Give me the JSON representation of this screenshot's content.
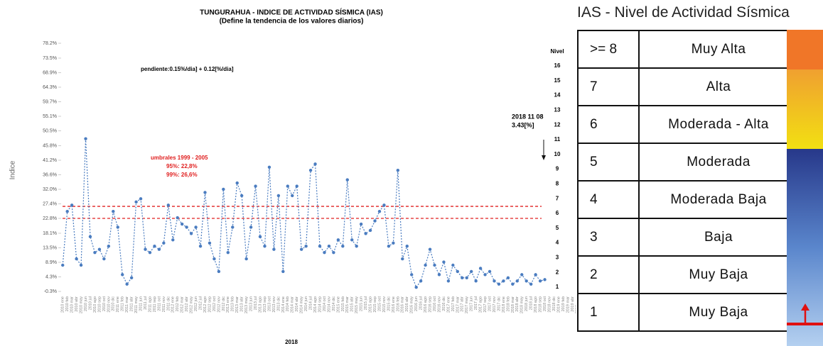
{
  "chart_data": {
    "type": "line",
    "title": "TUNGURAHUA - INDICE DE ACTIVIDAD SÍSMICA (IAS)",
    "subtitle": "(Define la tendencia de los valores diarios)",
    "y_label": "Indice",
    "x_label": "2018",
    "y2_label": "Nivel",
    "color": "#4a7cc0",
    "categories": [
      "2010 ene",
      "2010 feb",
      "2010 mar",
      "2010 abr",
      "2010 may",
      "2010 jun",
      "2010 jul",
      "2010 ago",
      "2010 sep",
      "2010 oct",
      "2010 nov",
      "2010 dic",
      "2011 ene",
      "2011 feb",
      "2011 mar",
      "2011 abr",
      "2011 may",
      "2011 jun",
      "2011 jul",
      "2011 ago",
      "2011 sep",
      "2011 oct",
      "2011 nov",
      "2011 dic",
      "2012 ene",
      "2012 feb",
      "2012 mar",
      "2012 abr",
      "2012 may",
      "2012 jun",
      "2012 jul",
      "2012 ago",
      "2012 sep",
      "2012 oct",
      "2012 nov",
      "2012 dic",
      "2013 ene",
      "2013 feb",
      "2013 mar",
      "2013 abr",
      "2013 may",
      "2013 jun",
      "2013 jul",
      "2013 ago",
      "2013 sep",
      "2013 oct",
      "2013 nov",
      "2013 dic",
      "2014 ene",
      "2014 feb",
      "2014 mar",
      "2014 abr",
      "2014 may",
      "2014 jun",
      "2014 jul",
      "2014 ago",
      "2014 sep",
      "2014 oct",
      "2014 nov",
      "2014 dic",
      "2015 ene",
      "2015 feb",
      "2015 mar",
      "2015 abr",
      "2015 may",
      "2015 jun",
      "2015 jul",
      "2015 ago",
      "2015 sep",
      "2015 oct",
      "2015 nov",
      "2015 dic",
      "2016 ene",
      "2016 feb",
      "2016 mar",
      "2016 abr",
      "2016 may",
      "2016 jun",
      "2016 jul",
      "2016 ago",
      "2016 sep",
      "2016 oct",
      "2016 nov",
      "2016 dic",
      "2017 ene",
      "2017 feb",
      "2017 mar",
      "2017 abr",
      "2017 may",
      "2017 jun",
      "2017 jul",
      "2017 ago",
      "2017 sep",
      "2017 oct",
      "2017 nov",
      "2017 dic",
      "2018 ene",
      "2018 feb",
      "2018 mar",
      "2018 abr",
      "2018 may",
      "2018 jun",
      "2018 jul",
      "2018 ago",
      "2018 sep",
      "2018 oct",
      "2018 nov",
      "2018 dic",
      "2019 ene",
      "2019 feb",
      "2019 mar",
      "2019 abr",
      "2019 may"
    ],
    "values": [
      8,
      25,
      27,
      10,
      8,
      48,
      17,
      12,
      13,
      10,
      14,
      25,
      20,
      5,
      2,
      4,
      28,
      29,
      13,
      12,
      14,
      13,
      15,
      27,
      16,
      23,
      21,
      20,
      18,
      20,
      14,
      31,
      15,
      10,
      6,
      32,
      12,
      20,
      34,
      30,
      10,
      20,
      33,
      17,
      14,
      39,
      13,
      30,
      6,
      33,
      30,
      33,
      13,
      14,
      38,
      40,
      14,
      12,
      14,
      12,
      16,
      14,
      35,
      16,
      14,
      21,
      18,
      19,
      22,
      25,
      27,
      14,
      15,
      38,
      10,
      14,
      5,
      1,
      3,
      8,
      13,
      8,
      5,
      9,
      3,
      8,
      6,
      4,
      4,
      6,
      3,
      7,
      5,
      6,
      3,
      2,
      3,
      4,
      2,
      3,
      5,
      3,
      2,
      5,
      3,
      3.43,
      null,
      null,
      null,
      null,
      null,
      null,
      null
    ],
    "ylim": [
      -0.3,
      78.2
    ],
    "yticks": [
      {
        "value": -0.3,
        "label": "-0.3%"
      },
      {
        "value": 4.3,
        "label": "4.3%"
      },
      {
        "value": 8.9,
        "label": "8.9%"
      },
      {
        "value": 13.5,
        "label": "13.5%"
      },
      {
        "value": 18.1,
        "label": "18.1%"
      },
      {
        "value": 22.8,
        "label": "22.8%"
      },
      {
        "value": 27.4,
        "label": "27.4%"
      },
      {
        "value": 32.0,
        "label": "32.0%"
      },
      {
        "value": 36.6,
        "label": "36.6%"
      },
      {
        "value": 41.2,
        "label": "41.2%"
      },
      {
        "value": 45.8,
        "label": "45.8%"
      },
      {
        "value": 50.5,
        "label": "50.5%"
      },
      {
        "value": 55.1,
        "label": "55.1%"
      },
      {
        "value": 59.7,
        "label": "59.7%"
      },
      {
        "value": 64.3,
        "label": "64.3%"
      },
      {
        "value": 68.9,
        "label": "68.9%"
      },
      {
        "value": 73.5,
        "label": "73.5%"
      },
      {
        "value": 78.2,
        "label": "78.2%"
      }
    ],
    "y2lim": [
      0.71,
      17.54
    ],
    "y2ticks": [
      1,
      2,
      3,
      4,
      5,
      6,
      7,
      8,
      9,
      10,
      11,
      12,
      13,
      14,
      15,
      16
    ],
    "reference_lines": [
      {
        "value": 26.6,
        "color": "#e02020"
      },
      {
        "value": 22.8,
        "color": "#e02020"
      }
    ],
    "annotations": {
      "slope": "pendiente:0.15%/dia] +  0.12[%/dia]",
      "thresholds_title": "umbrales 1999 - 2005",
      "threshold_95": "95%:   22,8%",
      "threshold_99": "99%:   26,6%",
      "last_date": "2018 11 08",
      "last_value": "3.43[%]"
    }
  },
  "table": {
    "title": "IAS - Nivel de Actividad Sísmica",
    "rows": [
      [
        ">= 8",
        "Muy Alta"
      ],
      [
        "7",
        "Alta"
      ],
      [
        "6",
        "Moderada - Alta"
      ],
      [
        "5",
        "Moderada"
      ],
      [
        "4",
        "Moderada Baja"
      ],
      [
        "3",
        "Baja"
      ],
      [
        "2",
        "Muy Baja"
      ],
      [
        "1",
        "Muy Baja"
      ]
    ]
  }
}
